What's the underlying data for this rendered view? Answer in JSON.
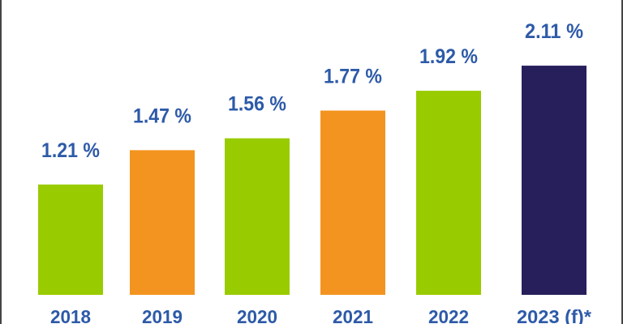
{
  "chart_data": {
    "type": "bar",
    "categories": [
      "2018",
      "2019",
      "2020",
      "2021",
      "2022",
      "2023 (f)*"
    ],
    "values": [
      1.21,
      1.47,
      1.56,
      1.77,
      1.92,
      2.11
    ],
    "data_labels": [
      "1.21 %",
      "1.47 %",
      "1.56 %",
      "1.77 %",
      "1.92 %",
      "2.11 %"
    ],
    "colors": [
      "#99cc00",
      "#f39420",
      "#99cc00",
      "#f39420",
      "#99cc00",
      "#271f5c"
    ],
    "label_color": "#2d5aa8",
    "title": "",
    "xlabel": "",
    "ylabel": "",
    "grid": false,
    "legend": "none"
  }
}
